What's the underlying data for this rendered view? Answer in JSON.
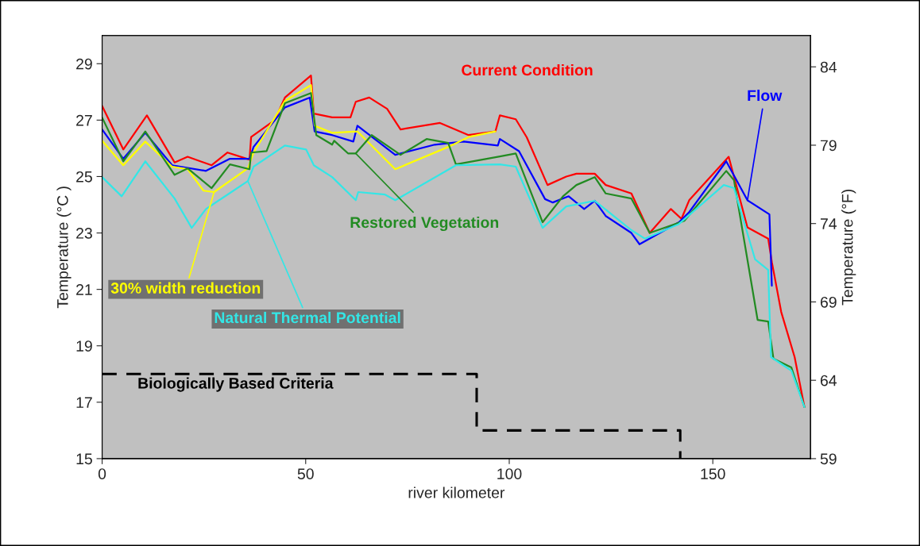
{
  "chart_data": {
    "type": "line",
    "xlabel": "river kilometer",
    "ylabel": "Temperature (°C )",
    "y2label": "Temperature (°F)",
    "xlim": [
      0,
      174
    ],
    "xticks": [
      0,
      50,
      100,
      150
    ],
    "ylim": [
      15,
      30
    ],
    "yticks": [
      15,
      17,
      19,
      21,
      23,
      25,
      27,
      29
    ],
    "y2lim": [
      59,
      86
    ],
    "y2ticks": [
      59,
      64,
      69,
      74,
      79,
      84
    ],
    "grid": false,
    "legend": false,
    "marker": "none",
    "line_style": "solid",
    "series": [
      {
        "name": "Current Condition",
        "color": "#ff0000",
        "x": [
          0,
          5.2,
          11,
          17.8,
          21,
          26.9,
          30.8,
          36.2,
          36.6,
          42.4,
          44.9,
          51.3,
          52,
          56.5,
          61,
          62.3,
          65.6,
          70,
          73.3,
          83,
          90,
          96.6,
          97.7,
          101.6,
          104.3,
          109.4,
          114,
          116.5,
          121,
          123.7,
          130,
          134.5,
          139.7,
          142.3,
          144.2,
          153.9,
          158.5,
          163.6,
          164.5,
          166.8,
          170.1,
          172.5
        ],
        "values": [
          27.5,
          25.96,
          27.17,
          25.5,
          25.7,
          25.4,
          25.85,
          25.6,
          26.4,
          27.0,
          27.8,
          28.58,
          27.23,
          27.1,
          27.1,
          27.65,
          27.8,
          27.4,
          26.67,
          26.9,
          26.47,
          26.6,
          27.17,
          27.03,
          26.39,
          24.7,
          25.0,
          25.1,
          25.1,
          24.7,
          24.4,
          23.0,
          23.85,
          23.5,
          24.16,
          25.7,
          23.2,
          22.8,
          21.97,
          20.2,
          18.6,
          16.83
        ]
      },
      {
        "name": "Flow",
        "color": "#0000ff",
        "x": [
          0,
          5.2,
          10.6,
          17.2,
          25.5,
          31.4,
          36.2,
          37.2,
          44.9,
          51,
          52.2,
          56.5,
          61.7,
          62.7,
          72,
          81.7,
          88.8,
          97.2,
          97.7,
          102.4,
          108.8,
          110.7,
          114.6,
          118.4,
          121,
          123.7,
          130,
          132,
          141.7,
          144.2,
          153.3,
          158.5,
          163.9,
          164.5
        ],
        "values": [
          26.67,
          25.63,
          26.55,
          25.4,
          25.2,
          25.63,
          25.63,
          26.05,
          27.45,
          27.8,
          26.6,
          26.47,
          26.24,
          26.8,
          25.77,
          26.13,
          26.24,
          26.1,
          26.33,
          25.9,
          24.2,
          24.08,
          24.3,
          23.85,
          24.14,
          23.6,
          23.0,
          22.6,
          23.38,
          23.74,
          25.54,
          24.16,
          23.66,
          21.13
        ]
      },
      {
        "name": "30% width reduction",
        "color": "#ffff00",
        "x": [
          0,
          5.2,
          10.6,
          17.2,
          21,
          24.9,
          27.5,
          35.8,
          37.2,
          44.9,
          51.3,
          52.2,
          56.5,
          62.7,
          72,
          85,
          90,
          96.6
        ],
        "values": [
          26.27,
          25.4,
          26.24,
          25.35,
          25.26,
          24.5,
          24.45,
          25.29,
          25.85,
          27.68,
          28.24,
          26.8,
          26.55,
          26.6,
          25.26,
          26.05,
          26.4,
          26.6
        ]
      },
      {
        "name": "Restored Vegetation",
        "color": "#228b22",
        "x": [
          0,
          5.2,
          10.6,
          17.8,
          21,
          26.9,
          31.4,
          36.2,
          36.6,
          40.4,
          44.9,
          51.3,
          52.6,
          56.5,
          57,
          60.4,
          62.3,
          66.2,
          73.3,
          79.7,
          85,
          86.9,
          97.7,
          101.6,
          108.2,
          113.2,
          116.5,
          121,
          123.7,
          130,
          134.5,
          143,
          153.3,
          155.2,
          161,
          163.6,
          164.9,
          169.3,
          172.5
        ],
        "values": [
          27.09,
          25.54,
          26.6,
          25.06,
          25.29,
          24.59,
          25.43,
          25.26,
          25.85,
          25.9,
          27.6,
          27.96,
          26.47,
          26.13,
          26.27,
          25.82,
          25.82,
          26.47,
          25.77,
          26.33,
          26.19,
          25.43,
          25.71,
          25.82,
          23.38,
          24.3,
          24.7,
          24.98,
          24.4,
          24.22,
          23.0,
          23.43,
          25.2,
          24.87,
          19.92,
          19.86,
          18.54,
          18.23,
          16.83
        ]
      },
      {
        "name": "Natural Thermal Potential",
        "color": "#33e6e6",
        "x": [
          0,
          4.8,
          10.6,
          17.8,
          22,
          25.5,
          30.8,
          35.8,
          37.2,
          44.9,
          50.1,
          52,
          56.5,
          62.3,
          62.9,
          69.5,
          72,
          86.9,
          97.7,
          101.6,
          108.2,
          114,
          121,
          130,
          133.3,
          141.7,
          152.7,
          155.2,
          160.4,
          163.6,
          164.3,
          169.3,
          172.5
        ],
        "values": [
          24.98,
          24.3,
          25.54,
          24.22,
          23.18,
          23.85,
          24.36,
          24.84,
          25.35,
          26.1,
          25.96,
          25.4,
          24.98,
          24.16,
          24.45,
          24.36,
          24.16,
          25.4,
          25.43,
          25.35,
          23.18,
          23.94,
          24.14,
          23.1,
          22.8,
          23.32,
          24.7,
          24.59,
          22.06,
          21.69,
          18.6,
          18.12,
          16.83
        ]
      },
      {
        "name": "Biologically Based Criteria",
        "type": "step",
        "color": "#000000",
        "line_style": "dashed",
        "x": [
          0,
          92,
          142
        ],
        "values": [
          18,
          16,
          15
        ]
      }
    ]
  }
}
